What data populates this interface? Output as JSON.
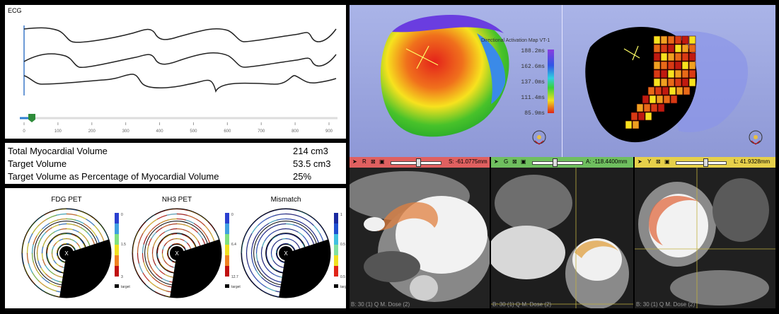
{
  "ecg": {
    "title": "ECG",
    "x_ticks": [
      "0",
      "100",
      "200",
      "300",
      "400",
      "500",
      "600",
      "700",
      "800",
      "900"
    ]
  },
  "stats": [
    {
      "label": "Total Myocardial Volume",
      "value": "214 cm3"
    },
    {
      "label": "Target Volume",
      "value": "53.5 cm3"
    },
    {
      "label": "Target Volume as Percentage of Myocardial Volume",
      "value": "25%"
    }
  ],
  "bullseye": {
    "plots": [
      {
        "title": "FDG PET",
        "scale_top": "0",
        "scale_mid": "1.5",
        "scale_bot": "3",
        "legend": "target",
        "center": "X"
      },
      {
        "title": "NH3 PET",
        "scale_top": "0",
        "scale_mid": "6.4",
        "scale_bot": "12.7",
        "legend": "target",
        "center": "X"
      },
      {
        "title": "Mismatch",
        "scale_top": "1",
        "scale_mid": "0.5",
        "scale_bot": "0.5",
        "legend": "target",
        "center": "X"
      }
    ]
  },
  "viewer3d": {
    "map_title": "Directional Activation Map VT-1",
    "scale_labels": [
      "188.2ms",
      "162.6ms",
      "137.0ms",
      "111.4ms",
      "85.9ms"
    ]
  },
  "slices": [
    {
      "axis": "R",
      "coord": "S: -61.0775mm",
      "color": "#e06060",
      "slider": 0.55,
      "footer": "B: 30 (1) Q M. Dose (2)"
    },
    {
      "axis": "G",
      "coord": "A: -118.4400mm",
      "color": "#6fbf5f",
      "slider": 0.45,
      "footer": "B: 30 (1) Q M. Dose (2)"
    },
    {
      "axis": "Y",
      "coord": "L: 41.9328mm",
      "color": "#e6d04a",
      "slider": 0.6,
      "footer": "B: 30 (1) Q M. Dose (2)"
    }
  ]
}
